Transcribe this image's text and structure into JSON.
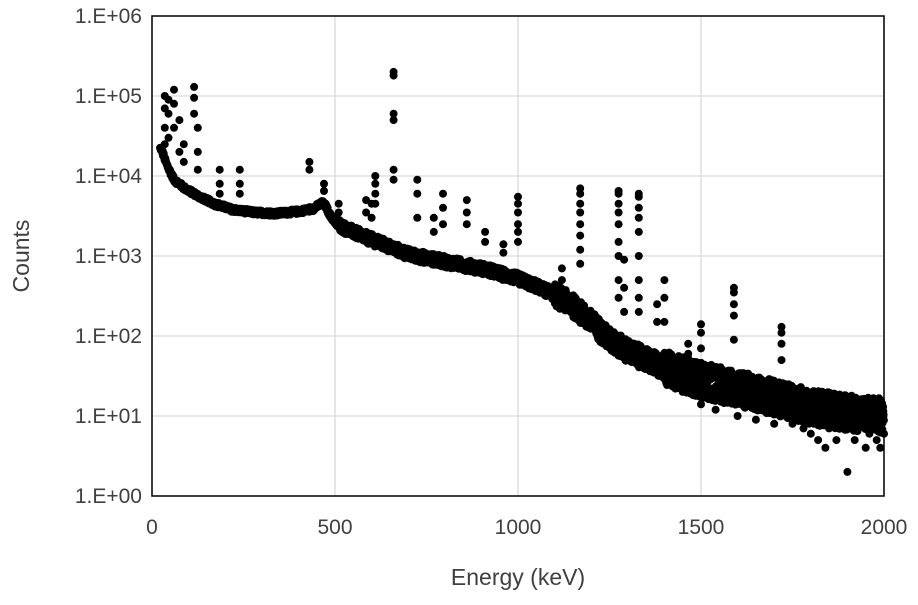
{
  "chart_data": {
    "type": "scatter",
    "title": "",
    "xlabel": "Energy (keV)",
    "ylabel": "Counts",
    "xlim": [
      0,
      2000
    ],
    "ylim": [
      1,
      1000000
    ],
    "yscale": "log",
    "grid": true,
    "legend": "none",
    "marker_color": "#000000",
    "x_ticks": [
      {
        "value": 0,
        "label": "0"
      },
      {
        "value": 500,
        "label": "500"
      },
      {
        "value": 1000,
        "label": "1000"
      },
      {
        "value": 1500,
        "label": "1500"
      },
      {
        "value": 2000,
        "label": "2000"
      }
    ],
    "y_ticks": [
      {
        "value": 1,
        "label": "1.E+00"
      },
      {
        "value": 10,
        "label": "1.E+01"
      },
      {
        "value": 100,
        "label": "1.E+02"
      },
      {
        "value": 1000,
        "label": "1.E+03"
      },
      {
        "value": 10000,
        "label": "1.E+04"
      },
      {
        "value": 100000,
        "label": "1.E+05"
      },
      {
        "value": 1000000,
        "label": "1.E+06"
      }
    ],
    "continuum": [
      [
        25,
        22000
      ],
      [
        40,
        14000
      ],
      [
        60,
        9000
      ],
      [
        90,
        7000
      ],
      [
        130,
        5500
      ],
      [
        170,
        4500
      ],
      [
        220,
        3800
      ],
      [
        280,
        3500
      ],
      [
        340,
        3400
      ],
      [
        400,
        3600
      ],
      [
        440,
        3900
      ],
      [
        465,
        4600
      ],
      [
        475,
        4200
      ],
      [
        490,
        3000
      ],
      [
        520,
        2300
      ],
      [
        560,
        1900
      ],
      [
        600,
        1600
      ],
      [
        650,
        1300
      ],
      [
        700,
        1050
      ],
      [
        800,
        850
      ],
      [
        900,
        700
      ],
      [
        1000,
        520
      ],
      [
        1050,
        420
      ],
      [
        1100,
        330
      ],
      [
        1150,
        240
      ],
      [
        1200,
        150
      ],
      [
        1250,
        90
      ],
      [
        1300,
        65
      ],
      [
        1400,
        40
      ],
      [
        1500,
        28
      ],
      [
        1600,
        22
      ],
      [
        1700,
        17
      ],
      [
        1800,
        13
      ],
      [
        1900,
        11
      ],
      [
        2000,
        10
      ]
    ],
    "peaks": [
      {
        "x": 35,
        "counts": [
          100000,
          70000,
          40000,
          25000
        ]
      },
      {
        "x": 45,
        "counts": [
          90000,
          60000,
          30000
        ]
      },
      {
        "x": 60,
        "counts": [
          120000,
          80000,
          40000
        ]
      },
      {
        "x": 75,
        "counts": [
          50000,
          20000
        ]
      },
      {
        "x": 87,
        "counts": [
          25000,
          15000
        ]
      },
      {
        "x": 115,
        "counts": [
          130000,
          95000,
          60000
        ]
      },
      {
        "x": 125,
        "counts": [
          40000,
          20000,
          12000
        ]
      },
      {
        "x": 185,
        "counts": [
          12000,
          8000,
          6000
        ]
      },
      {
        "x": 240,
        "counts": [
          12000,
          8000,
          6000
        ]
      },
      {
        "x": 430,
        "counts": [
          15000,
          12000
        ]
      },
      {
        "x": 470,
        "counts": [
          8000,
          6500
        ]
      },
      {
        "x": 510,
        "counts": [
          4500,
          3500
        ]
      },
      {
        "x": 585,
        "counts": [
          5000,
          3500
        ]
      },
      {
        "x": 600,
        "counts": [
          4500,
          3000
        ]
      },
      {
        "x": 610,
        "counts": [
          10000,
          8000,
          6000,
          4500
        ]
      },
      {
        "x": 660,
        "counts": [
          200000,
          180000,
          60000,
          50000,
          12000,
          9000
        ]
      },
      {
        "x": 725,
        "counts": [
          9000,
          6000,
          3000
        ]
      },
      {
        "x": 770,
        "counts": [
          3000,
          2000
        ]
      },
      {
        "x": 795,
        "counts": [
          6000,
          4000,
          2500
        ]
      },
      {
        "x": 860,
        "counts": [
          5000,
          3500,
          2500
        ]
      },
      {
        "x": 910,
        "counts": [
          2000,
          1500
        ]
      },
      {
        "x": 960,
        "counts": [
          1400,
          1100
        ]
      },
      {
        "x": 1000,
        "counts": [
          5500,
          4500,
          3500,
          2500,
          2000,
          1500
        ]
      },
      {
        "x": 1120,
        "counts": [
          700,
          500
        ]
      },
      {
        "x": 1170,
        "counts": [
          7000,
          6000,
          4500,
          3500,
          2500,
          1800,
          1200,
          800
        ]
      },
      {
        "x": 1275,
        "counts": [
          6500,
          6000,
          4500,
          3500,
          2500,
          1500,
          1000,
          500,
          300
        ]
      },
      {
        "x": 1290,
        "counts": [
          900,
          400,
          200
        ]
      },
      {
        "x": 1330,
        "counts": [
          6000,
          5500,
          4000,
          3000,
          2000,
          1000,
          500,
          300,
          200
        ]
      },
      {
        "x": 1380,
        "counts": [
          250,
          150
        ]
      },
      {
        "x": 1400,
        "counts": [
          500,
          300,
          150
        ]
      },
      {
        "x": 1465,
        "counts": [
          80,
          60
        ]
      },
      {
        "x": 1500,
        "counts": [
          140,
          110,
          70
        ]
      },
      {
        "x": 1590,
        "counts": [
          400,
          350,
          250,
          180,
          90
        ]
      },
      {
        "x": 1720,
        "counts": [
          130,
          110,
          80,
          50
        ]
      }
    ],
    "low_outliers": [
      [
        1450,
        20
      ],
      [
        1500,
        14
      ],
      [
        1540,
        12
      ],
      [
        1600,
        10
      ],
      [
        1650,
        9
      ],
      [
        1700,
        8
      ],
      [
        1750,
        8
      ],
      [
        1780,
        7
      ],
      [
        1800,
        6
      ],
      [
        1820,
        5
      ],
      [
        1840,
        4
      ],
      [
        1850,
        7
      ],
      [
        1870,
        5
      ],
      [
        1900,
        2
      ],
      [
        1920,
        5
      ],
      [
        1950,
        4
      ],
      [
        1960,
        6
      ],
      [
        1980,
        5
      ],
      [
        1990,
        4
      ],
      [
        2000,
        6
      ]
    ]
  }
}
